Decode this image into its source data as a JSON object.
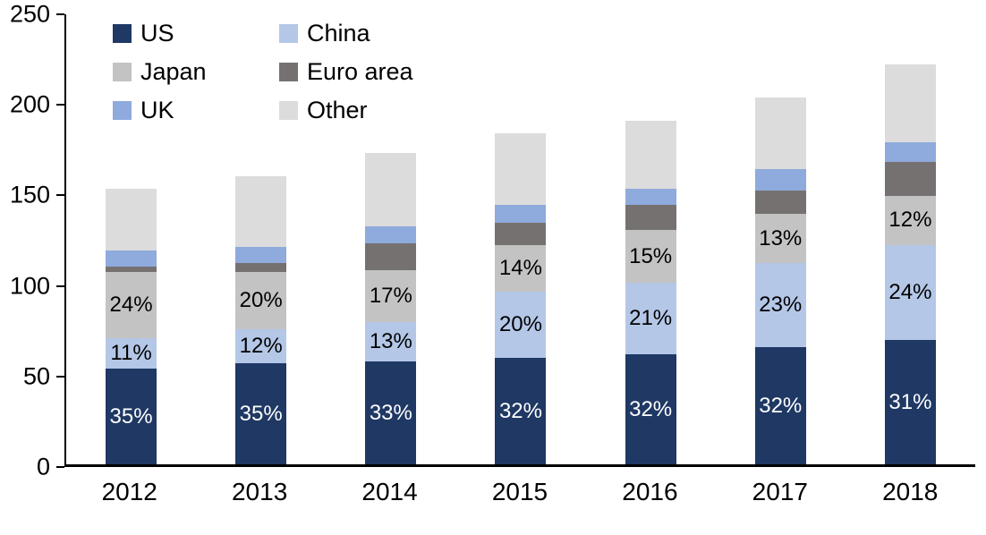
{
  "chart_data": {
    "type": "bar",
    "stacked": true,
    "title": "",
    "xlabel": "",
    "ylabel": "",
    "ylim": [
      0,
      250
    ],
    "yticks": [
      0,
      50,
      100,
      150,
      200,
      250
    ],
    "grid": false,
    "legend_position": "top-left",
    "categories": [
      "2012",
      "2013",
      "2014",
      "2015",
      "2016",
      "2017",
      "2018"
    ],
    "totals": [
      153,
      160,
      173,
      184,
      191,
      204,
      222
    ],
    "series": [
      {
        "name": "US",
        "color": "#1f3864",
        "values": [
          53,
          56,
          57,
          59,
          61,
          65,
          69
        ],
        "labels": [
          "35%",
          "35%",
          "33%",
          "32%",
          "32%",
          "32%",
          "31%"
        ],
        "label_color": "#ffffff"
      },
      {
        "name": "China",
        "color": "#b4c7e7",
        "values": [
          17,
          19,
          22,
          37,
          40,
          47,
          53
        ],
        "labels": [
          "11%",
          "12%",
          "13%",
          "20%",
          "21%",
          "23%",
          "24%"
        ],
        "label_color": "#000000"
      },
      {
        "name": "Japan",
        "color": "#c3c3c3",
        "values": [
          37,
          32,
          29,
          26,
          29,
          27,
          27
        ],
        "labels": [
          "24%",
          "20%",
          "17%",
          "14%",
          "15%",
          "13%",
          "12%"
        ],
        "label_color": "#000000"
      },
      {
        "name": "Euro area",
        "color": "#767171",
        "values": [
          3,
          5,
          15,
          12,
          14,
          13,
          19
        ],
        "labels": null,
        "label_color": null
      },
      {
        "name": "UK",
        "color": "#8faadc",
        "values": [
          9,
          9,
          9,
          10,
          9,
          12,
          11
        ],
        "labels": null,
        "label_color": null
      },
      {
        "name": "Other",
        "color": "#dcdcdc",
        "values": [
          34,
          39,
          41,
          40,
          38,
          40,
          43
        ],
        "labels": null,
        "label_color": null
      }
    ]
  }
}
